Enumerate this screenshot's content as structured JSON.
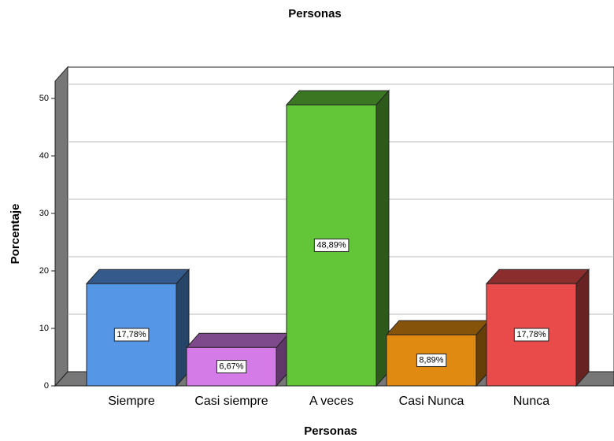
{
  "chart_data": {
    "type": "bar3d",
    "title": "Personas",
    "x_label": "Personas",
    "y_label": "Porcentaje",
    "categories": [
      "Siempre",
      "Casi siempre",
      "A veces",
      "Casi Nunca",
      "Nunca"
    ],
    "values": [
      17.78,
      6.67,
      48.89,
      8.89,
      17.78
    ],
    "value_labels": [
      "17,78%",
      "6,67%",
      "48,89%",
      "8,89%",
      "17,78%"
    ],
    "colors": [
      "#5596e6",
      "#d47be8",
      "#63c639",
      "#e08a12",
      "#e94b4b"
    ],
    "ylim": [
      0,
      53
    ],
    "yticks": [
      0,
      10,
      20,
      30,
      40,
      50
    ],
    "grid": true
  }
}
